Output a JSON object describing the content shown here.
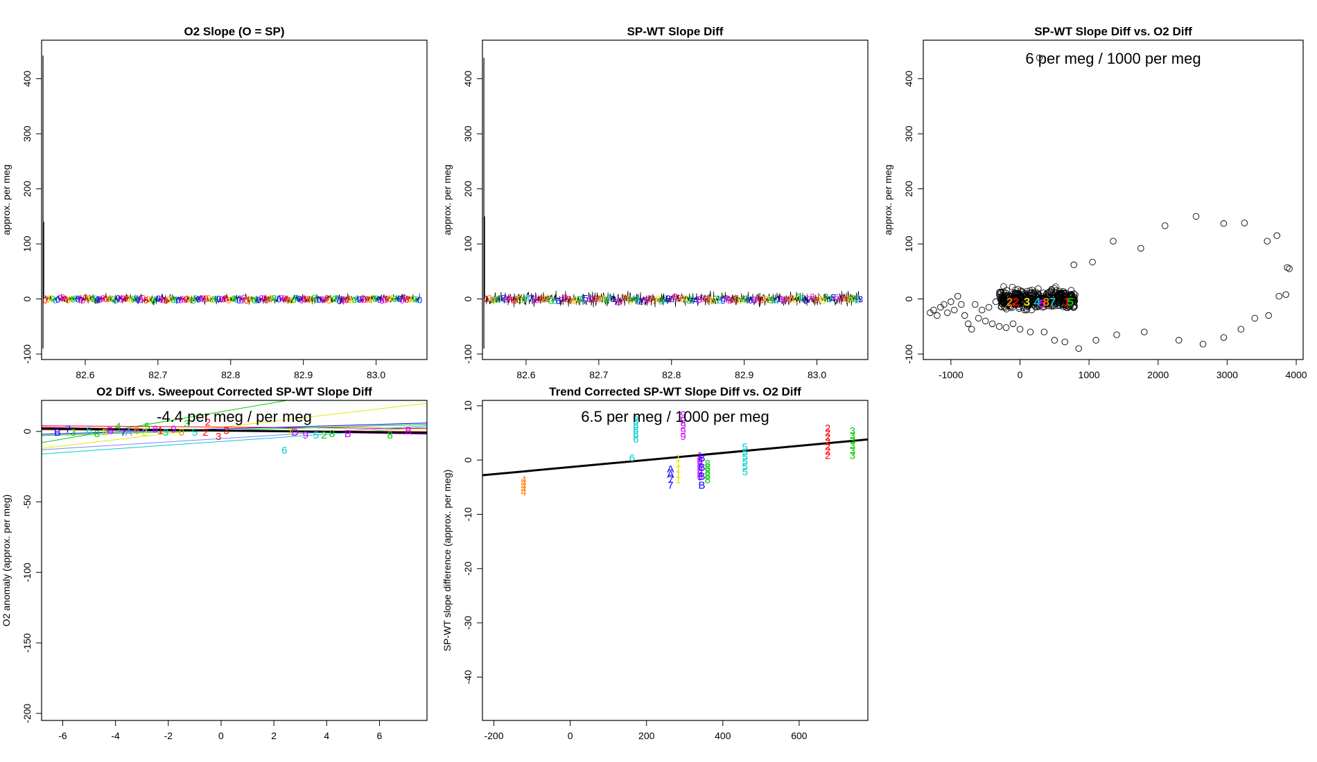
{
  "chart_data": [
    {
      "id": "p1",
      "type": "line",
      "title": "O2 Slope (O = SP)",
      "xlabel": "",
      "ylabel": "approx. per meg",
      "xlim": [
        82.54,
        83.07
      ],
      "ylim": [
        -110,
        470
      ],
      "xticks": [
        82.6,
        82.7,
        82.8,
        82.9,
        83.0
      ],
      "xtick_labels": [
        "82.6",
        "82.7",
        "82.8",
        "82.9",
        "83.0"
      ],
      "yticks": [
        -100,
        0,
        100,
        200,
        300,
        400
      ],
      "ytick_labels": [
        "-100",
        "0",
        "100",
        "200",
        "300",
        "400"
      ],
      "spike": {
        "x": 82.542,
        "y_max": 442,
        "y_min": -90,
        "second_max": 140
      },
      "noise": {
        "x_start": 82.545,
        "x_end": 83.06,
        "center": 0,
        "amplitude": 12
      },
      "marker_label": "0",
      "palette": [
        "#ff0000",
        "#ff8000",
        "#e6e600",
        "#00cc00",
        "#00cccc",
        "#0000ff",
        "#cc00ff",
        "#ff00cc"
      ]
    },
    {
      "id": "p2",
      "type": "line",
      "title": "SP-WT Slope Diff",
      "xlabel": "",
      "ylabel": "approx. per meg",
      "xlim": [
        82.54,
        83.07
      ],
      "ylim": [
        -110,
        470
      ],
      "xticks": [
        82.6,
        82.7,
        82.8,
        82.9,
        83.0
      ],
      "xtick_labels": [
        "82.6",
        "82.7",
        "82.8",
        "82.9",
        "83.0"
      ],
      "yticks": [
        -100,
        0,
        100,
        200,
        300,
        400
      ],
      "ytick_labels": [
        "-100",
        "0",
        "100",
        "200",
        "300",
        "400"
      ],
      "spike": {
        "x": 82.542,
        "y_max": 438,
        "y_min": -90,
        "second_max": 150
      },
      "noise": {
        "x_start": 82.545,
        "x_end": 83.06,
        "center": 0,
        "amplitude": 18
      },
      "marker_labels": [
        "2",
        "3",
        "5",
        "6",
        "7",
        "8",
        "9",
        "A",
        "B"
      ],
      "palette": [
        "#ff0000",
        "#ff8000",
        "#e6e600",
        "#00cc00",
        "#00cccc",
        "#0000ff",
        "#cc00ff",
        "#ff00cc"
      ]
    },
    {
      "id": "p3",
      "type": "scatter",
      "title": "SP-WT Slope Diff vs. O2 Diff",
      "annotation": "6 per meg / 1000 per meg",
      "xlabel": "",
      "ylabel": "approx. per meg",
      "xlim": [
        -1400,
        4100
      ],
      "ylim": [
        -110,
        470
      ],
      "xticks": [
        -1000,
        0,
        1000,
        2000,
        3000,
        4000
      ],
      "xtick_labels": [
        "-1000",
        "0",
        "1000",
        "2000",
        "3000",
        "4000"
      ],
      "yticks": [
        -100,
        0,
        100,
        200,
        300,
        400
      ],
      "ytick_labels": [
        "-100",
        "0",
        "100",
        "200",
        "300",
        "400"
      ],
      "outlier": {
        "x": 280,
        "y": 438
      },
      "loop_points": [
        [
          -1300,
          -25
        ],
        [
          -1250,
          -20
        ],
        [
          -1200,
          -30
        ],
        [
          -1150,
          -15
        ],
        [
          -1100,
          -10
        ],
        [
          -1050,
          -25
        ],
        [
          -1000,
          -5
        ],
        [
          -950,
          -20
        ],
        [
          -900,
          5
        ],
        [
          -850,
          -10
        ],
        [
          -800,
          -30
        ],
        [
          -750,
          -45
        ],
        [
          -700,
          -55
        ],
        [
          -650,
          -10
        ],
        [
          -600,
          -35
        ],
        [
          -550,
          -20
        ],
        [
          -500,
          -40
        ],
        [
          -450,
          -15
        ],
        [
          -400,
          -45
        ],
        [
          -350,
          -5
        ],
        [
          -300,
          -50
        ],
        [
          -200,
          -52
        ],
        [
          -100,
          -45
        ],
        [
          0,
          -55
        ],
        [
          150,
          -60
        ],
        [
          350,
          -60
        ],
        [
          500,
          -75
        ],
        [
          650,
          -78
        ],
        [
          850,
          -90
        ],
        [
          1100,
          -75
        ],
        [
          1400,
          -65
        ],
        [
          1800,
          -60
        ],
        [
          2300,
          -75
        ],
        [
          2650,
          -82
        ],
        [
          2950,
          -70
        ],
        [
          3200,
          -55
        ],
        [
          3400,
          -35
        ],
        [
          3600,
          -30
        ],
        [
          3750,
          5
        ],
        [
          3850,
          8
        ],
        [
          3900,
          55
        ],
        [
          3870,
          57
        ],
        [
          3720,
          115
        ],
        [
          3580,
          105
        ],
        [
          3250,
          138
        ],
        [
          2950,
          137
        ],
        [
          2550,
          150
        ],
        [
          2100,
          133
        ],
        [
          1750,
          92
        ],
        [
          1350,
          105
        ],
        [
          1050,
          67
        ],
        [
          780,
          62
        ]
      ],
      "cluster_labels": [
        {
          "t": "2",
          "x": -150,
          "y": -5,
          "c": "#ff8000"
        },
        {
          "t": "2",
          "x": -60,
          "y": -5,
          "c": "#ff0000"
        },
        {
          "t": "3",
          "x": 100,
          "y": -5,
          "c": "#e6e600"
        },
        {
          "t": "4",
          "x": 250,
          "y": -5,
          "c": "#00cccc"
        },
        {
          "t": "5",
          "x": 320,
          "y": -8,
          "c": "#cc00ff"
        },
        {
          "t": "8",
          "x": 380,
          "y": -5,
          "c": "#ff8000"
        },
        {
          "t": "7",
          "x": 470,
          "y": -5,
          "c": "#00cccc"
        },
        {
          "t": "1",
          "x": 680,
          "y": -5,
          "c": "#ff0000"
        },
        {
          "t": "5",
          "x": 730,
          "y": -5,
          "c": "#00cc00"
        }
      ],
      "cluster": {
        "x_start": -300,
        "x_end": 800,
        "center": 0,
        "spread": 25
      }
    },
    {
      "id": "p4",
      "type": "scatter",
      "title": "O2 Diff vs. Sweepout Corrected SP-WT Slope Diff",
      "annotation": "-4.4 per meg / per meg",
      "xlabel": "",
      "ylabel": "O2 anomaly (approx. per meg)",
      "xlim": [
        -6.8,
        7.8
      ],
      "ylim": [
        -205,
        22
      ],
      "xticks": [
        -6,
        -4,
        -2,
        0,
        2,
        4,
        6
      ],
      "xtick_labels": [
        "-6",
        "-4",
        "-2",
        "0",
        "2",
        "4",
        "6"
      ],
      "yticks": [
        -200,
        -150,
        -100,
        -50,
        0
      ],
      "ytick_labels": [
        "-200",
        "-150",
        "-100",
        "-50",
        "0"
      ],
      "fit_line": {
        "x1": -6.8,
        "y1": 2.0,
        "x2": 7.8,
        "y2": -1.0,
        "color": "#000000"
      },
      "series_lines": [
        {
          "x1": -6.8,
          "y1": -12,
          "x2": 7.8,
          "y2": 20,
          "color": "#e6e600"
        },
        {
          "x1": -6.8,
          "y1": -8,
          "x2": 2.5,
          "y2": 22,
          "color": "#00cc00"
        },
        {
          "x1": -6.8,
          "y1": -16,
          "x2": 7.8,
          "y2": 3,
          "color": "#00cccc"
        },
        {
          "x1": -6.8,
          "y1": -13,
          "x2": 7.8,
          "y2": 4,
          "color": "#8080ff"
        },
        {
          "x1": -6.8,
          "y1": 4,
          "x2": 7.8,
          "y2": 2,
          "color": "#ff0000"
        },
        {
          "x1": -6.8,
          "y1": -2,
          "x2": 7.8,
          "y2": 6,
          "color": "#0000ff"
        },
        {
          "x1": -6.8,
          "y1": 3,
          "x2": 7.8,
          "y2": -2,
          "color": "#cc00ff"
        },
        {
          "x1": -6.8,
          "y1": 1,
          "x2": 7.8,
          "y2": 0,
          "color": "#ff8000"
        },
        {
          "x1": -6.8,
          "y1": -3,
          "x2": 7.8,
          "y2": 5,
          "color": "#00cc00"
        }
      ],
      "labels": [
        {
          "t": "B",
          "x": -6.2,
          "y": 0,
          "c": "#0000ff"
        },
        {
          "t": "7",
          "x": -5.8,
          "y": 2,
          "c": "#0000ff"
        },
        {
          "t": "3",
          "x": -5.6,
          "y": 0,
          "c": "#00cc00"
        },
        {
          "t": "6",
          "x": -5.0,
          "y": 1,
          "c": "#00cccc"
        },
        {
          "t": "8",
          "x": -4.7,
          "y": -1,
          "c": "#00cc00"
        },
        {
          "t": "5",
          "x": -4.4,
          "y": 0,
          "c": "#e6e600"
        },
        {
          "t": "B",
          "x": -4.2,
          "y": 1,
          "c": "#cc00ff"
        },
        {
          "t": "4",
          "x": -3.9,
          "y": 4,
          "c": "#00cc00"
        },
        {
          "t": "7",
          "x": -3.7,
          "y": 0,
          "c": "#0000ff"
        },
        {
          "t": "A",
          "x": -3.5,
          "y": 0,
          "c": "#8080ff"
        },
        {
          "t": "6",
          "x": -3.2,
          "y": 1,
          "c": "#ff8000"
        },
        {
          "t": "2",
          "x": -2.9,
          "y": 0,
          "c": "#e6e600"
        },
        {
          "t": "5",
          "x": -2.8,
          "y": 4,
          "c": "#00cc00"
        },
        {
          "t": "8",
          "x": -2.5,
          "y": 2,
          "c": "#cc00ff"
        },
        {
          "t": "1",
          "x": -2.3,
          "y": 1,
          "c": "#ff0000"
        },
        {
          "t": "3",
          "x": -2.1,
          "y": 0,
          "c": "#00cccc"
        },
        {
          "t": "9",
          "x": -1.8,
          "y": 2,
          "c": "#cc00ff"
        },
        {
          "t": "0",
          "x": -1.5,
          "y": 0,
          "c": "#ff8000"
        },
        {
          "t": "3",
          "x": -1.3,
          "y": 6,
          "c": "#00cc00"
        },
        {
          "t": "5",
          "x": -1.0,
          "y": 0,
          "c": "#00cccc"
        },
        {
          "t": "2",
          "x": -0.5,
          "y": 7,
          "c": "#ff0000"
        },
        {
          "t": "2",
          "x": -0.6,
          "y": 0,
          "c": "#ff0000"
        },
        {
          "t": "3",
          "x": -0.1,
          "y": -3,
          "c": "#ff0000"
        },
        {
          "t": "3",
          "x": 0.2,
          "y": 1,
          "c": "#ff0000"
        },
        {
          "t": "6",
          "x": 2.4,
          "y": -13,
          "c": "#00cccc"
        },
        {
          "t": "7",
          "x": 2.6,
          "y": 0,
          "c": "#e6e600"
        },
        {
          "t": "D",
          "x": 2.8,
          "y": 0,
          "c": "#cc00ff"
        },
        {
          "t": "9",
          "x": 3.2,
          "y": -2,
          "c": "#cc00ff"
        },
        {
          "t": "5",
          "x": 3.6,
          "y": -2,
          "c": "#00cccc"
        },
        {
          "t": "2",
          "x": 3.9,
          "y": -2,
          "c": "#00cc00"
        },
        {
          "t": "8",
          "x": 4.2,
          "y": -1,
          "c": "#00cc00"
        },
        {
          "t": "B",
          "x": 4.8,
          "y": -1,
          "c": "#cc00ff"
        },
        {
          "t": "8",
          "x": 6.4,
          "y": -2,
          "c": "#00cc00"
        },
        {
          "t": "B",
          "x": 7.1,
          "y": 1,
          "c": "#cc00ff"
        }
      ]
    },
    {
      "id": "p5",
      "type": "scatter",
      "title": "Trend Corrected SP-WT Slope Diff vs. O2 Diff",
      "annotation": "6.5 per meg / 1000 per meg",
      "xlabel": "",
      "ylabel": "SP-WT slope difference (approx. per meg)",
      "xlim": [
        -230,
        780
      ],
      "ylim": [
        -48,
        11
      ],
      "xticks": [
        -200,
        0,
        200,
        400,
        600
      ],
      "xtick_labels": [
        "-200",
        "0",
        "200",
        "400",
        "600"
      ],
      "yticks": [
        -40,
        -30,
        -20,
        -10,
        0,
        10
      ],
      "ytick_labels": [
        "-40",
        "-30",
        "-20",
        "-10",
        "0",
        "10"
      ],
      "fit_line": {
        "x1": -230,
        "y1": -2.8,
        "x2": 780,
        "y2": 3.8,
        "color": "#000000"
      },
      "groups": [
        {
          "x": -122,
          "c": "#ff8000",
          "labels": [
            "4",
            "4",
            "4",
            "4",
            "4"
          ],
          "y_top": -3.5,
          "y_bottom": -5.8
        },
        {
          "x": 172,
          "c": "#00cccc",
          "labels": [
            "6",
            "6",
            "6",
            "6",
            "6",
            "6"
          ],
          "y_top": 8.0,
          "y_bottom": 4.0
        },
        {
          "x": 162,
          "c": "#00cccc",
          "labels": [
            "6"
          ],
          "y_top": 0.5,
          "y_bottom": 0.5
        },
        {
          "x": 263,
          "c": "#0000ff",
          "labels": [
            "A",
            "A",
            "7",
            "7"
          ],
          "y_top": -1.5,
          "y_bottom": -4.5
        },
        {
          "x": 283,
          "c": "#e6e600",
          "labels": [
            "1",
            "1",
            "1",
            "1",
            "1"
          ],
          "y_top": 0.5,
          "y_bottom": -3.5
        },
        {
          "x": 296,
          "c": "#cc00ff",
          "labels": [
            "9",
            "9",
            "9",
            "9",
            "9"
          ],
          "y_top": 8.5,
          "y_bottom": 4.5
        },
        {
          "x": 340,
          "c": "#cc00ff",
          "labels": [
            "1",
            "0",
            "0",
            "0",
            "0",
            "0",
            "0"
          ],
          "y_top": 1.0,
          "y_bottom": -3.0
        },
        {
          "x": 345,
          "c": "#0000ff",
          "labels": [
            "B",
            "B",
            "B",
            "B"
          ],
          "y_top": 0.5,
          "y_bottom": -4.5
        },
        {
          "x": 360,
          "c": "#00cc00",
          "labels": [
            "8",
            "8",
            "8",
            "8",
            "8"
          ],
          "y_top": -0.5,
          "y_bottom": -3.5
        },
        {
          "x": 458,
          "c": "#00cccc",
          "labels": [
            "5",
            "5",
            "5",
            "5",
            "5",
            "5"
          ],
          "y_top": 2.5,
          "y_bottom": -2.0
        },
        {
          "x": 675,
          "c": "#ff0000",
          "labels": [
            "2",
            "2",
            "2",
            "2",
            "2",
            "2",
            "2"
          ],
          "y_top": 6.0,
          "y_bottom": 1.0
        },
        {
          "x": 740,
          "c": "#00cc00",
          "labels": [
            "3",
            "3",
            "3",
            "3",
            "3",
            "3"
          ],
          "y_top": 5.5,
          "y_bottom": 1.0
        }
      ]
    }
  ]
}
